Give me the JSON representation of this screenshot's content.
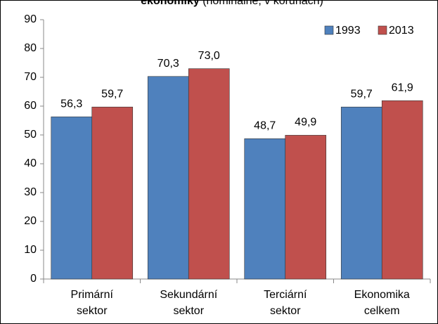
{
  "chart_data": {
    "type": "bar",
    "title_parts": [
      "ekonomiky",
      "(nominálně, v korunách)"
    ],
    "categories": [
      [
        "Primární",
        "sektor"
      ],
      [
        "Sekundární",
        "sektor"
      ],
      [
        "Terciární",
        "sektor"
      ],
      [
        "Ekonomika",
        "celkem"
      ]
    ],
    "series": [
      {
        "name": "1993",
        "color": "#4f81bd",
        "values": [
          56.3,
          70.3,
          48.7,
          59.7
        ],
        "value_labels": [
          "56,3",
          "70,3",
          "48,7",
          "59,7"
        ]
      },
      {
        "name": "2013",
        "color": "#c0504d",
        "values": [
          59.7,
          73.0,
          49.9,
          61.9
        ],
        "value_labels": [
          "59,7",
          "73,0",
          "49,9",
          "61,9"
        ]
      }
    ],
    "ylim": [
      0,
      90
    ],
    "yticks": [
      0,
      10,
      20,
      30,
      40,
      50,
      60,
      70,
      80,
      90
    ],
    "grid": false,
    "legend": "top-right"
  }
}
